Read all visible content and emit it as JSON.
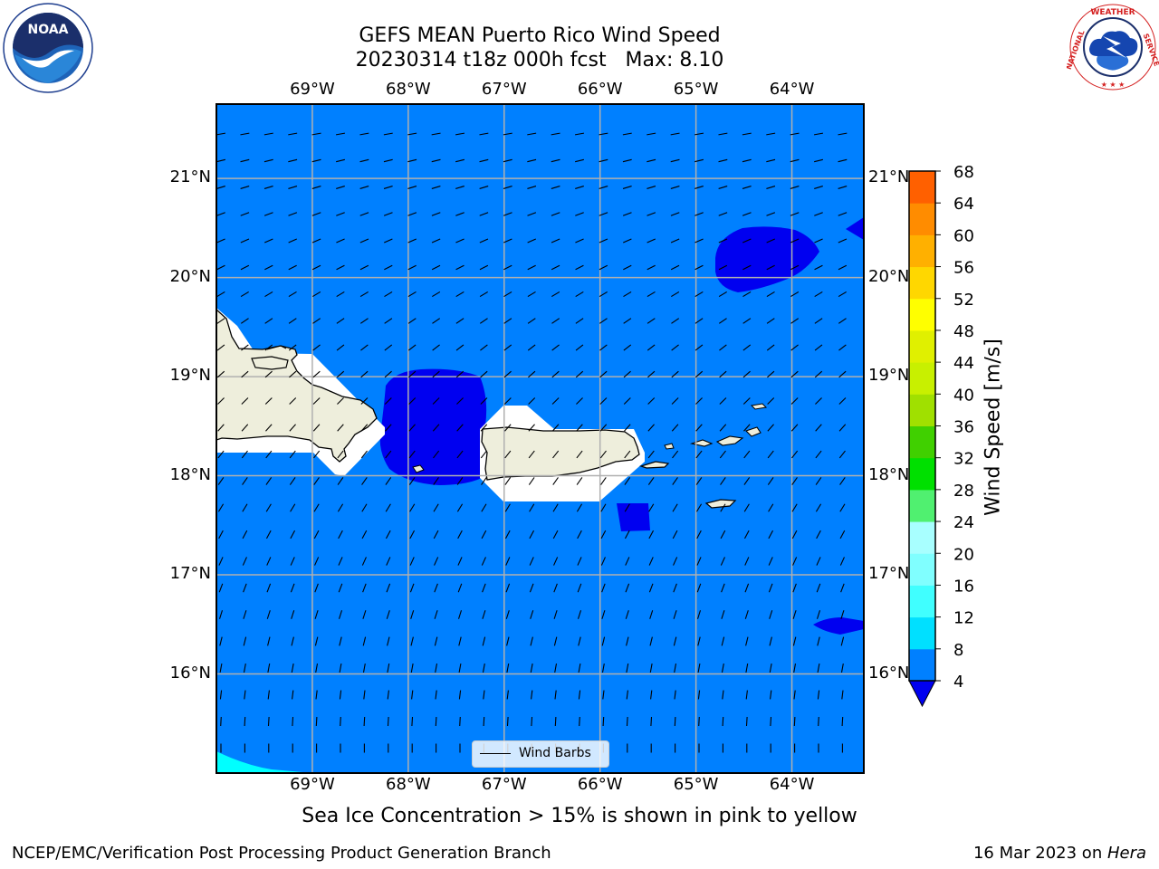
{
  "title": {
    "line1": "GEFS MEAN Puerto Rico Wind Speed",
    "line2": "20230314 t18z 000h fcst   Max: 8.10"
  },
  "logos": {
    "left": {
      "name": "noaa-logo",
      "text": "NOAA",
      "ring_text": "NATIONAL OCEANIC AND ATMOSPHERIC ADMINISTRATION · U.S. DEPARTMENT OF COMMERCE"
    },
    "right": {
      "name": "nws-logo",
      "ring_text": "NATIONAL WEATHER SERVICE"
    }
  },
  "map": {
    "lon_ticks": [
      "69°W",
      "68°W",
      "67°W",
      "66°W",
      "65°W",
      "64°W"
    ],
    "lat_ticks": [
      "21°N",
      "20°N",
      "19°N",
      "18°N",
      "17°N",
      "16°N"
    ],
    "lon_values": [
      -69,
      -68,
      -67,
      -66,
      -65,
      -64
    ],
    "lat_values": [
      21,
      20,
      19,
      18,
      17,
      16
    ],
    "extent": {
      "lon_min": -70.0,
      "lon_max": -63.25,
      "lat_min": 15.0,
      "lat_max": 21.75
    },
    "background_color": "#0080ff",
    "land_color": "#eeeedc",
    "legend_label": "Wind Barbs"
  },
  "colorbar": {
    "label": "Wind Speed [m/s]",
    "ticks": [
      "68",
      "64",
      "60",
      "56",
      "52",
      "48",
      "44",
      "40",
      "36",
      "32",
      "28",
      "24",
      "20",
      "16",
      "12",
      "8",
      "4"
    ],
    "colors_bottom_to_top": [
      "#0000f0",
      "#0080ff",
      "#00e0ff",
      "#40ffff",
      "#80ffff",
      "#a8ffff",
      "#50f070",
      "#00e000",
      "#40d000",
      "#a0e000",
      "#c8f000",
      "#e0f000",
      "#ffff00",
      "#ffd700",
      "#ffb000",
      "#ff8c00",
      "#ff6000",
      "#ff3000",
      "#ff0000"
    ]
  },
  "sea_note": "Sea Ice Concentration > 15% is shown in pink to yellow",
  "footer": {
    "left": "NCEP/EMC/Verification Post Processing Product Generation Branch",
    "right_prefix": "16 Mar 2023 on ",
    "right_machine": "Hera"
  }
}
